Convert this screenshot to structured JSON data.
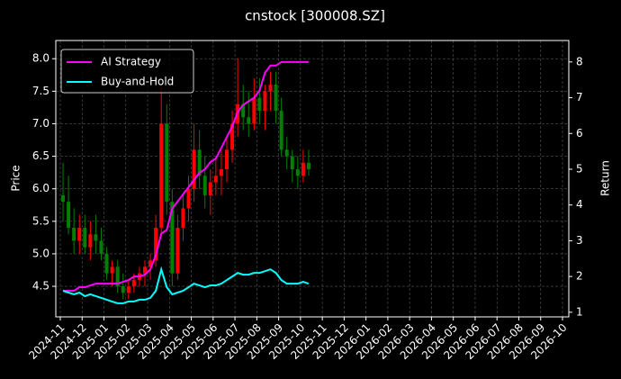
{
  "chart_data": {
    "type": "candlestick",
    "title": "cnstock [300008.SZ]",
    "ylabel": "Price",
    "y2label": "Return",
    "x": [
      "2024-11",
      "2024-11",
      "2024-11",
      "2024-11",
      "2024-12",
      "2024-12",
      "2024-12",
      "2024-12",
      "2025-01",
      "2025-01",
      "2025-01",
      "2025-01",
      "2025-02",
      "2025-02",
      "2025-02",
      "2025-02",
      "2025-03",
      "2025-03",
      "2025-03",
      "2025-03",
      "2025-04",
      "2025-04",
      "2025-04",
      "2025-04",
      "2025-05",
      "2025-05",
      "2025-05",
      "2025-05",
      "2025-06",
      "2025-06",
      "2025-06",
      "2025-06",
      "2025-07",
      "2025-07",
      "2025-07",
      "2025-07",
      "2025-08",
      "2025-08",
      "2025-08",
      "2025-08",
      "2025-09",
      "2025-09",
      "2025-09",
      "2025-09",
      "2025-10",
      "2025-10"
    ],
    "open": [
      5.9,
      5.8,
      5.4,
      5.2,
      5.4,
      5.1,
      5.3,
      5.2,
      5.0,
      4.7,
      4.8,
      4.5,
      4.4,
      4.5,
      4.6,
      4.7,
      4.8,
      4.9,
      5.4,
      7.0,
      5.8,
      4.7,
      5.4,
      5.7,
      6.0,
      6.6,
      6.2,
      5.9,
      6.1,
      6.2,
      6.3,
      6.6,
      7.0,
      7.3,
      7.1,
      7.0,
      7.4,
      7.2,
      7.5,
      7.6,
      7.2,
      6.6,
      6.5,
      6.3,
      6.2,
      6.4
    ],
    "high": [
      6.4,
      6.2,
      5.7,
      5.6,
      5.6,
      5.5,
      5.6,
      5.4,
      5.1,
      4.9,
      4.9,
      4.7,
      4.6,
      4.7,
      4.8,
      4.9,
      5.0,
      5.6,
      7.6,
      7.3,
      6.0,
      5.6,
      5.9,
      6.2,
      7.0,
      6.9,
      6.5,
      6.3,
      6.5,
      6.6,
      6.8,
      7.2,
      8.0,
      7.6,
      7.5,
      7.7,
      7.7,
      7.6,
      7.8,
      7.8,
      7.4,
      6.8,
      6.6,
      6.5,
      6.6,
      6.6
    ],
    "low": [
      5.5,
      5.3,
      5.0,
      5.0,
      5.0,
      4.9,
      5.0,
      4.9,
      4.6,
      4.5,
      4.4,
      4.3,
      4.3,
      4.4,
      4.5,
      4.5,
      4.6,
      4.8,
      5.3,
      5.6,
      4.5,
      4.6,
      5.2,
      5.5,
      5.8,
      6.0,
      5.7,
      5.6,
      5.9,
      5.9,
      6.1,
      6.4,
      6.8,
      6.9,
      6.8,
      6.9,
      7.0,
      6.9,
      7.2,
      7.0,
      6.5,
      6.3,
      6.1,
      6.0,
      6.1,
      6.2
    ],
    "close": [
      5.8,
      5.4,
      5.2,
      5.4,
      5.1,
      5.3,
      5.2,
      5.0,
      4.7,
      4.8,
      4.5,
      4.4,
      4.5,
      4.6,
      4.7,
      4.8,
      4.9,
      5.4,
      7.0,
      5.8,
      4.7,
      5.4,
      5.7,
      6.0,
      6.6,
      6.2,
      5.9,
      6.1,
      6.2,
      6.3,
      6.6,
      7.0,
      7.3,
      7.1,
      7.0,
      7.4,
      7.2,
      7.5,
      7.6,
      7.2,
      6.6,
      6.5,
      6.3,
      6.2,
      6.4,
      6.3
    ],
    "up_color": "#ff0000",
    "down_color": "#008000",
    "series": [
      {
        "name": "AI Strategy",
        "color": "#ff00ff",
        "axis": "y2",
        "values": [
          1.6,
          1.6,
          1.6,
          1.7,
          1.7,
          1.75,
          1.8,
          1.8,
          1.8,
          1.8,
          1.8,
          1.85,
          1.9,
          2.0,
          2.0,
          2.05,
          2.2,
          2.6,
          3.2,
          3.3,
          3.9,
          4.1,
          4.3,
          4.5,
          4.7,
          4.9,
          5.0,
          5.2,
          5.3,
          5.6,
          5.9,
          6.2,
          6.6,
          6.8,
          6.9,
          7.0,
          7.2,
          7.7,
          7.9,
          7.9,
          8.0,
          8.0,
          8.0,
          8.0,
          8.0,
          8.0
        ]
      },
      {
        "name": "Buy-and-Hold",
        "color": "#00ffff",
        "axis": "y2",
        "values": [
          1.6,
          1.55,
          1.5,
          1.55,
          1.45,
          1.5,
          1.45,
          1.4,
          1.35,
          1.3,
          1.25,
          1.25,
          1.3,
          1.3,
          1.35,
          1.35,
          1.4,
          1.6,
          2.2,
          1.7,
          1.5,
          1.55,
          1.6,
          1.7,
          1.8,
          1.75,
          1.7,
          1.75,
          1.75,
          1.8,
          1.9,
          2.0,
          2.1,
          2.05,
          2.05,
          2.1,
          2.1,
          2.15,
          2.2,
          2.1,
          1.9,
          1.8,
          1.8,
          1.8,
          1.85,
          1.8
        ]
      }
    ],
    "xlim": [
      "2024-11",
      "2026-10"
    ],
    "xticks": [
      "2024-11",
      "2024-12",
      "2025-01",
      "2025-02",
      "2025-03",
      "2025-04",
      "2025-05",
      "2025-06",
      "2025-07",
      "2025-08",
      "2025-09",
      "2025-10",
      "2025-11",
      "2025-12",
      "2026-01",
      "2026-02",
      "2026-03",
      "2026-04",
      "2026-05",
      "2026-06",
      "2026-07",
      "2026-08",
      "2026-09",
      "2026-10"
    ],
    "ylim": [
      4.03,
      8.28
    ],
    "yticks": [
      4.5,
      {
        "value": 5,
        "label": "5.0"
      },
      5.5,
      {
        "value": 6,
        "label": "6.0"
      },
      6.5,
      {
        "value": 7,
        "label": "7.0"
      },
      7.5,
      {
        "value": 8,
        "label": "8.0"
      }
    ],
    "y2lim": [
      0.87,
      8.6
    ],
    "y2ticks": [
      1,
      2,
      3,
      4,
      5,
      6,
      7,
      8
    ],
    "grid": true,
    "legend": "upper left"
  }
}
